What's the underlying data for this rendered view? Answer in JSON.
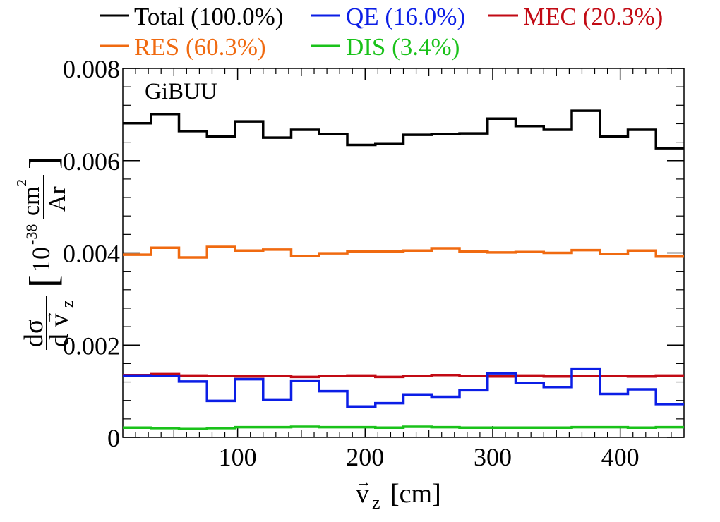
{
  "legend": {
    "entries": [
      {
        "label": "Total (100.0%)",
        "color": "#000000",
        "series": "total"
      },
      {
        "label": "QE (16.0%)",
        "color": "#0b1ee6",
        "series": "qe"
      },
      {
        "label": "MEC (20.3%)",
        "color": "#c20a14",
        "series": "mec"
      },
      {
        "label": "RES (60.3%)",
        "color": "#f06a10",
        "series": "res"
      },
      {
        "label": "DIS (3.4%)",
        "color": "#1ac21a",
        "series": "dis"
      }
    ]
  },
  "chart_data": {
    "type": "line",
    "step": true,
    "annotation": "GiBUU",
    "xlabel_main": "v",
    "xlabel_arrow": "→",
    "xlabel_sub": "z",
    "xlabel_unit": "[cm]",
    "ylabel": {
      "numerator": "dσ",
      "denominator_main": "d v",
      "denominator_arrow": "→",
      "denominator_sub": "z",
      "bracket_open": "[",
      "bracket_close": "]",
      "unit_prefix": "10",
      "unit_exp": "-38",
      "unit_main": "cm",
      "unit_main_exp": "2",
      "unit_den": "Ar"
    },
    "xlim": [
      10,
      450
    ],
    "ylim": [
      0,
      0.008
    ],
    "x_ticks": [
      100,
      200,
      300,
      400
    ],
    "y_ticks": [
      {
        "value": 0,
        "label": "0"
      },
      {
        "value": 0.002,
        "label": "0.002"
      },
      {
        "value": 0.004,
        "label": "0.004"
      },
      {
        "value": 0.006,
        "label": "0.006"
      },
      {
        "value": 0.008,
        "label": "0.008"
      }
    ],
    "bin_edges": [
      10,
      32,
      54,
      76,
      98,
      120,
      142,
      164,
      186,
      208,
      230,
      252,
      274,
      296,
      318,
      340,
      362,
      384,
      406,
      428,
      450
    ],
    "series": [
      {
        "name": "Total (100.0%)",
        "color": "#000000",
        "values": [
          0.00681,
          0.00701,
          0.00664,
          0.00652,
          0.00685,
          0.0065,
          0.00667,
          0.00658,
          0.00634,
          0.00636,
          0.00656,
          0.00658,
          0.00659,
          0.00691,
          0.00675,
          0.00667,
          0.00708,
          0.00652,
          0.00667,
          0.00627
        ]
      },
      {
        "name": "RES (60.3%)",
        "color": "#f06a10",
        "values": [
          0.00396,
          0.00411,
          0.0039,
          0.00413,
          0.00405,
          0.00407,
          0.00393,
          0.00399,
          0.00403,
          0.00403,
          0.00405,
          0.0041,
          0.00403,
          0.00401,
          0.00402,
          0.004,
          0.00406,
          0.00398,
          0.00405,
          0.00392
        ]
      },
      {
        "name": "MEC (20.3%)",
        "color": "#c20a14",
        "values": [
          0.00135,
          0.00137,
          0.00134,
          0.00133,
          0.00132,
          0.00133,
          0.00131,
          0.00133,
          0.00134,
          0.00131,
          0.00133,
          0.00135,
          0.00133,
          0.00132,
          0.00134,
          0.00132,
          0.00133,
          0.00133,
          0.00132,
          0.00134
        ]
      },
      {
        "name": "QE (16.0%)",
        "color": "#0b1ee6",
        "values": [
          0.00134,
          0.00133,
          0.00121,
          0.00079,
          0.00126,
          0.00082,
          0.00123,
          0.001,
          0.00067,
          0.00074,
          0.00093,
          0.00088,
          0.00102,
          0.00139,
          0.00118,
          0.00109,
          0.00149,
          0.00094,
          0.00104,
          0.00072
        ]
      },
      {
        "name": "DIS (3.4%)",
        "color": "#1ac21a",
        "values": [
          0.00021,
          0.0002,
          0.00018,
          0.0002,
          0.00022,
          0.00022,
          0.00023,
          0.00022,
          0.00022,
          0.00021,
          0.00023,
          0.00022,
          0.00021,
          0.00021,
          0.00021,
          0.00021,
          0.00022,
          0.00022,
          0.00021,
          0.00022
        ]
      }
    ]
  }
}
